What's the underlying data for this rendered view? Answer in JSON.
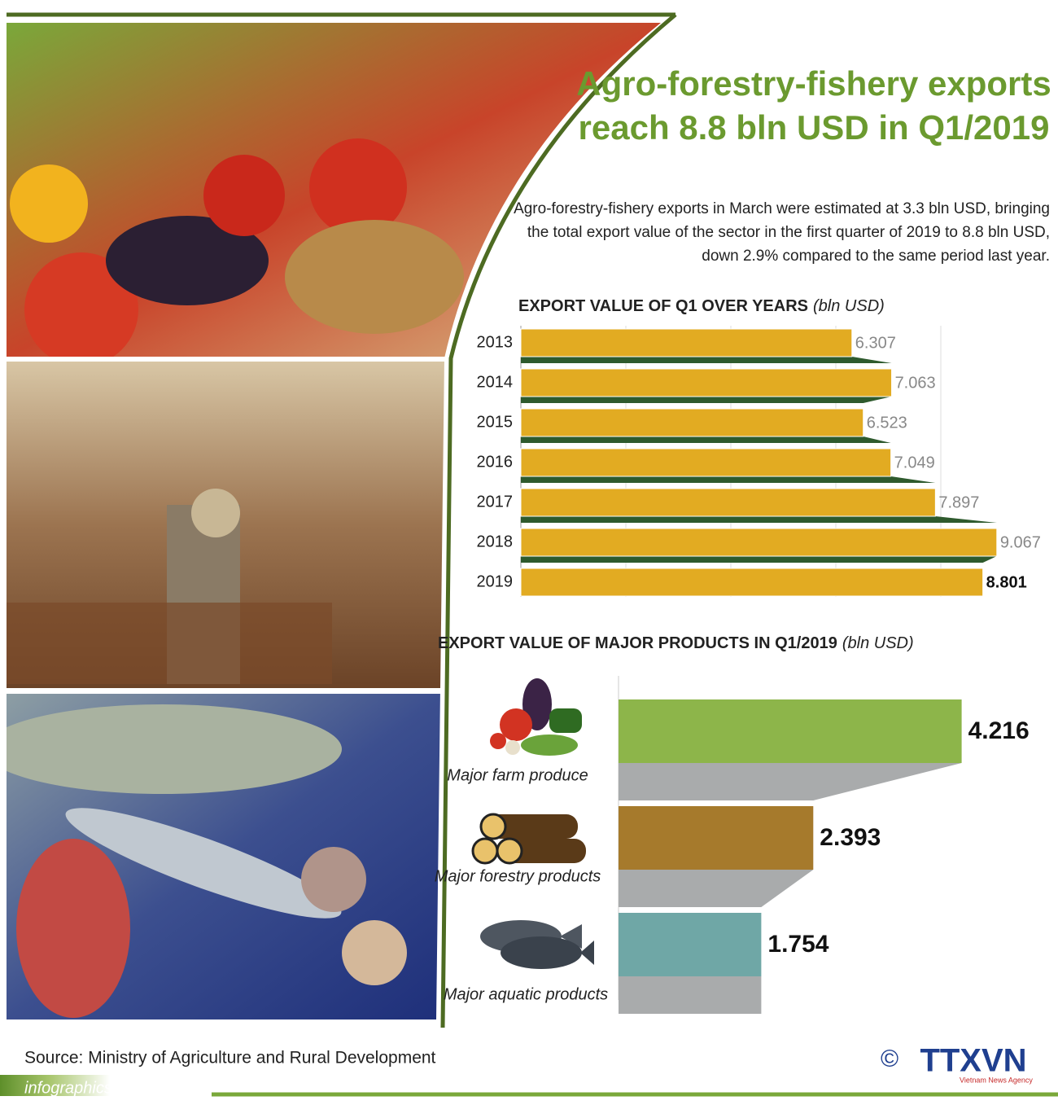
{
  "header": {
    "title": "Agro-forestry-fishery exports reach 8.8 bln USD in Q1/2019",
    "description": "Agro-forestry-fishery exports in March were estimated at 3.3 bln USD, bringing the total export value of the sector in the first quarter of 2019 to 8.8 bln USD, down 2.9% compared to the same period last year."
  },
  "chart_data": [
    {
      "type": "bar",
      "orientation": "horizontal",
      "title": "EXPORT VALUE OF Q1 OVER YEARS",
      "unit": "(bln USD)",
      "categories": [
        "2013",
        "2014",
        "2015",
        "2016",
        "2017",
        "2018",
        "2019"
      ],
      "values": [
        6.307,
        7.063,
        6.523,
        7.049,
        7.897,
        9.067,
        8.801
      ],
      "color": "#e2ab22",
      "shadow_color": "#2e5a2d",
      "xlim": [
        0,
        10
      ],
      "xticks": [
        0,
        2,
        4,
        6,
        8
      ],
      "grid": true
    },
    {
      "type": "bar",
      "orientation": "horizontal",
      "title": "EXPORT VALUE OF MAJOR PRODUCTS IN Q1/2019",
      "unit": "(bln USD)",
      "categories": [
        "Major farm produce",
        "Major forestry products",
        "Major aquatic products"
      ],
      "values": [
        4.216,
        2.393,
        1.754
      ],
      "colors": [
        "#8db54a",
        "#a67a2c",
        "#6fa7a6"
      ],
      "shadow_color": "#a9abac",
      "xlim": [
        0,
        5
      ]
    }
  ],
  "footer": {
    "source": "Source: Ministry of Agriculture and Rural Development",
    "website": "infographics.vn",
    "copyright": "©",
    "agency": "TTXVN",
    "agency_subtitle": "Vietnam News Agency"
  }
}
